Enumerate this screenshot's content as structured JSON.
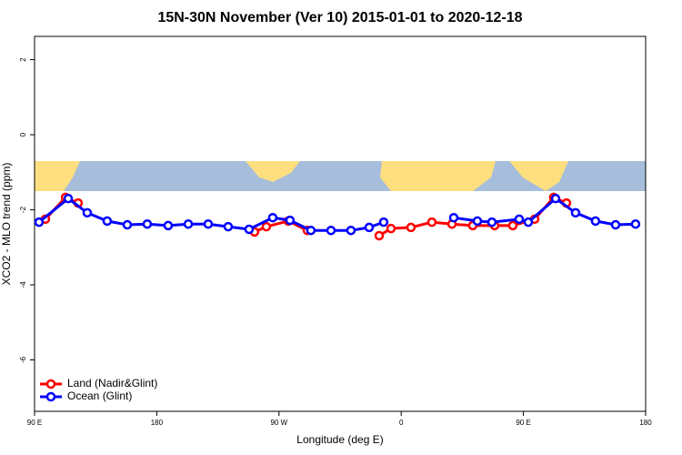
{
  "chart_data": {
    "type": "line",
    "title": "15N-30N November (Ver 10)   2015-01-01 to 2020-12-18",
    "x_label": "Longitude (deg E)",
    "y_label": "XCO2 - MLO trend (ppm)",
    "xlim": [
      90,
      540
    ],
    "xticks": [
      {
        "value": 90,
        "label": "90 E"
      },
      180,
      {
        "value": 270,
        "label": "90 W"
      },
      {
        "value": 360,
        "label": "0"
      },
      {
        "value": 450,
        "label": "90 E"
      },
      {
        "value": 540,
        "label": "180"
      }
    ],
    "ylim": [
      -7.37,
      2.62
    ],
    "yticks": [
      2,
      0,
      -2,
      -4,
      -6
    ],
    "legend": "bottom-left",
    "series": [
      {
        "name": "Land (Nadir&Glint)",
        "color": "#ff0000",
        "x": [
          98.0,
          112.8,
          122.1,
          null,
          252.0,
          260.7,
          276.8,
          290.9,
          null,
          343.8,
          352.5,
          367.2,
          382.6,
          397.4,
          412.7,
          428.8,
          442.2,
          458.3,
          472.3,
          481.7
        ],
        "values": [
          -2.25,
          -1.67,
          -1.82,
          null,
          -2.59,
          -2.45,
          -2.3,
          -2.55,
          null,
          -2.69,
          -2.5,
          -2.47,
          -2.33,
          -2.38,
          -2.42,
          -2.42,
          -2.42,
          -2.25,
          -1.67,
          -1.82
        ]
      },
      {
        "name": "Ocean (Glint)",
        "color": "#0000ff",
        "x": [
          93.3,
          114.8,
          128.8,
          143.5,
          158.3,
          173.0,
          188.4,
          203.2,
          217.9,
          232.6,
          248.0,
          265.4,
          278.1,
          293.5,
          308.3,
          323.0,
          336.4,
          347.1,
          null,
          398.7,
          416.1,
          426.8,
          446.9,
          453.6,
          473.7,
          488.4,
          503.1,
          517.9,
          532.6
        ],
        "values": [
          -2.33,
          -1.7,
          -2.08,
          -2.3,
          -2.4,
          -2.38,
          -2.42,
          -2.38,
          -2.38,
          -2.45,
          -2.52,
          -2.21,
          -2.28,
          -2.55,
          -2.55,
          -2.55,
          -2.47,
          -2.33,
          null,
          -2.21,
          -2.3,
          -2.33,
          -2.25,
          -2.33,
          -1.7,
          -2.08,
          -2.3,
          -2.4,
          -2.38
        ]
      }
    ]
  }
}
